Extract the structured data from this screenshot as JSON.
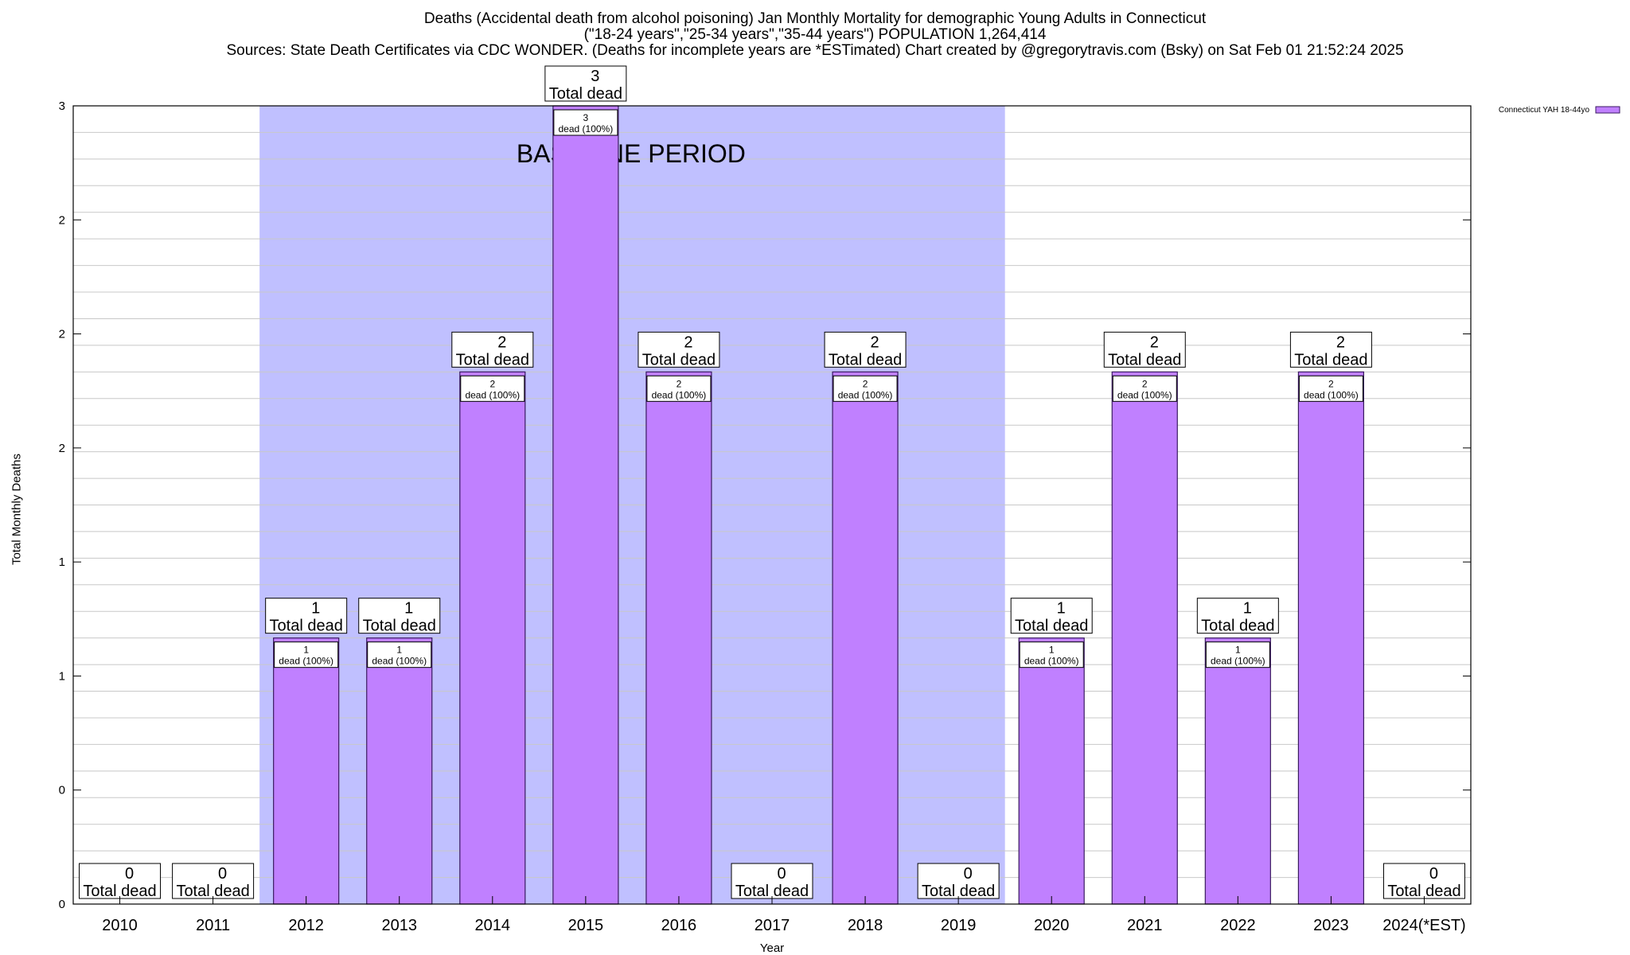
{
  "header": {
    "title_line1": "Deaths (Accidental death from alcohol poisoning) Jan Monthly Mortality for demographic Young Adults in Connecticut",
    "title_line2": "(\"18-24 years\",\"25-34 years\",\"35-44 years\") POPULATION 1,264,414",
    "title_line3": "Sources: State Death Certificates via CDC WONDER. (Deaths for incomplete years are *ESTimated)                Chart created by @gregorytravis.com (Bsky) on Sat Feb 01 21:52:24 2025"
  },
  "chart_data": {
    "type": "bar",
    "title": "Deaths (Accidental death from alcohol poisoning) Jan Monthly Mortality for demographic Young Adults in Connecticut",
    "xlabel": "Year",
    "ylabel": "Total Monthly Deaths",
    "categories": [
      "2010",
      "2011",
      "2012",
      "2013",
      "2014",
      "2015",
      "2016",
      "2017",
      "2018",
      "2019",
      "2020",
      "2021",
      "2022",
      "2023",
      "2024(*EST)"
    ],
    "series": [
      {
        "name": "Connecticut YAH 18-44yo",
        "values": [
          0,
          0,
          1,
          1,
          2,
          3,
          2,
          0,
          2,
          0,
          1,
          2,
          1,
          2,
          0
        ],
        "color": "#c080ff"
      }
    ],
    "ylim": [
      0,
      3
    ],
    "ytick_labels": [
      "0",
      "0",
      "1",
      "1",
      "2",
      "2",
      "2",
      "3"
    ],
    "total_label_word": "Total dead",
    "inner_label_suffix": "dead (100%)",
    "baseline_region": {
      "start": "2012",
      "end": "2019",
      "label": "BASELINE PERIOD",
      "color": "#c0c0ff"
    },
    "grid": true,
    "legend_position": "top-right"
  }
}
